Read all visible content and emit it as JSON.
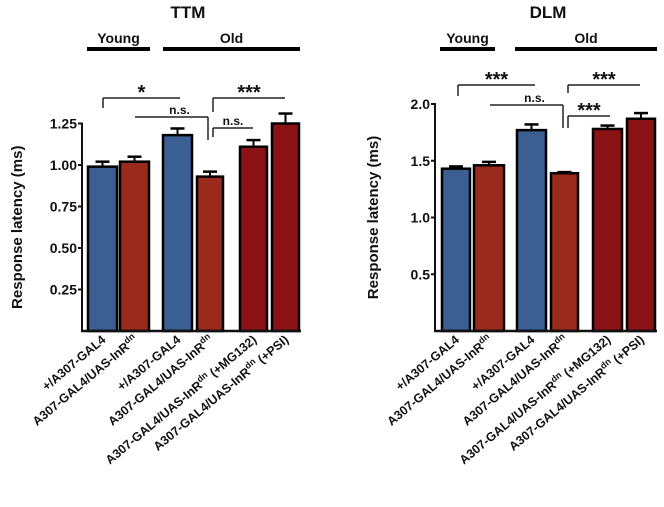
{
  "chart_data": [
    {
      "type": "bar",
      "title": "TTM",
      "ylabel": "Response latency (ms)",
      "xlabel": "",
      "ylim": [
        0,
        1.25
      ],
      "yticks": [
        "0.25",
        "0.50",
        "0.75",
        "1.00",
        "1.25"
      ],
      "ytick_values": [
        0.25,
        0.5,
        0.75,
        1.0,
        1.25
      ],
      "groups": [
        {
          "label": "Young",
          "bars": [
            0,
            1
          ]
        },
        {
          "label": "Old",
          "bars": [
            2,
            5
          ]
        }
      ],
      "categories": [
        {
          "base": "+/A307-GAL4",
          "sup": "",
          "suffix": ""
        },
        {
          "base": "A307-GAL4/UAS-InR",
          "sup": "dn",
          "suffix": ""
        },
        {
          "base": "+/A307-GAL4",
          "sup": "",
          "suffix": ""
        },
        {
          "base": "A307-GAL4/UAS-InR",
          "sup": "dn",
          "suffix": ""
        },
        {
          "base": "A307-GAL4/UAS-InR",
          "sup": "dn",
          "suffix": " (+MG132)"
        },
        {
          "base": "A307-GAL4/UAS-InR",
          "sup": "dn",
          "suffix": " (+PSI)"
        }
      ],
      "values": [
        0.99,
        1.02,
        1.18,
        0.93,
        1.11,
        1.25
      ],
      "errors": [
        0.03,
        0.03,
        0.04,
        0.03,
        0.04,
        0.06
      ],
      "colors": [
        "#3b5e93",
        "#9a2a1b",
        "#3b5e93",
        "#9a2a1b",
        "#8c1315",
        "#8c1315"
      ],
      "significance": [
        {
          "from": 0,
          "to": 2,
          "label": "*"
        },
        {
          "from": 1,
          "to": 3,
          "label": "n.s."
        },
        {
          "from": 3,
          "to": 5,
          "label": "***"
        },
        {
          "from": 3,
          "to": 4,
          "label": "n.s."
        }
      ]
    },
    {
      "type": "bar",
      "title": "DLM",
      "ylabel": "Response latency (ms)",
      "xlabel": "",
      "ylim": [
        0,
        2.0
      ],
      "yticks": [
        "0.5",
        "1.0",
        "1.5",
        "2.0"
      ],
      "ytick_values": [
        0.5,
        1.0,
        1.5,
        2.0
      ],
      "groups": [
        {
          "label": "Young",
          "bars": [
            0,
            1
          ]
        },
        {
          "label": "Old",
          "bars": [
            2,
            5
          ]
        }
      ],
      "categories": [
        {
          "base": "+/A307-GAL4",
          "sup": "",
          "suffix": ""
        },
        {
          "base": "A307-GAL4/UAS-InR",
          "sup": "dn",
          "suffix": ""
        },
        {
          "base": "+/A307-GAL4",
          "sup": "",
          "suffix": ""
        },
        {
          "base": "A307-GAL4/UAS-InR",
          "sup": "dn",
          "suffix": ""
        },
        {
          "base": "A307-GAL4/UAS-InR",
          "sup": "dn",
          "suffix": " (+MG132)"
        },
        {
          "base": "A307-GAL4/UAS-InR",
          "sup": "dn",
          "suffix": " (+PSI)"
        }
      ],
      "values": [
        1.43,
        1.46,
        1.77,
        1.39,
        1.78,
        1.87
      ],
      "errors": [
        0.02,
        0.03,
        0.05,
        0.01,
        0.03,
        0.05
      ],
      "colors": [
        "#3b5e93",
        "#9a2a1b",
        "#3b5e93",
        "#9a2a1b",
        "#8c1315",
        "#8c1315"
      ],
      "significance": [
        {
          "from": 0,
          "to": 2,
          "label": "***"
        },
        {
          "from": 1,
          "to": 3,
          "label": "n.s."
        },
        {
          "from": 3,
          "to": 5,
          "label": "***"
        },
        {
          "from": 3,
          "to": 4,
          "label": "***"
        }
      ]
    }
  ]
}
